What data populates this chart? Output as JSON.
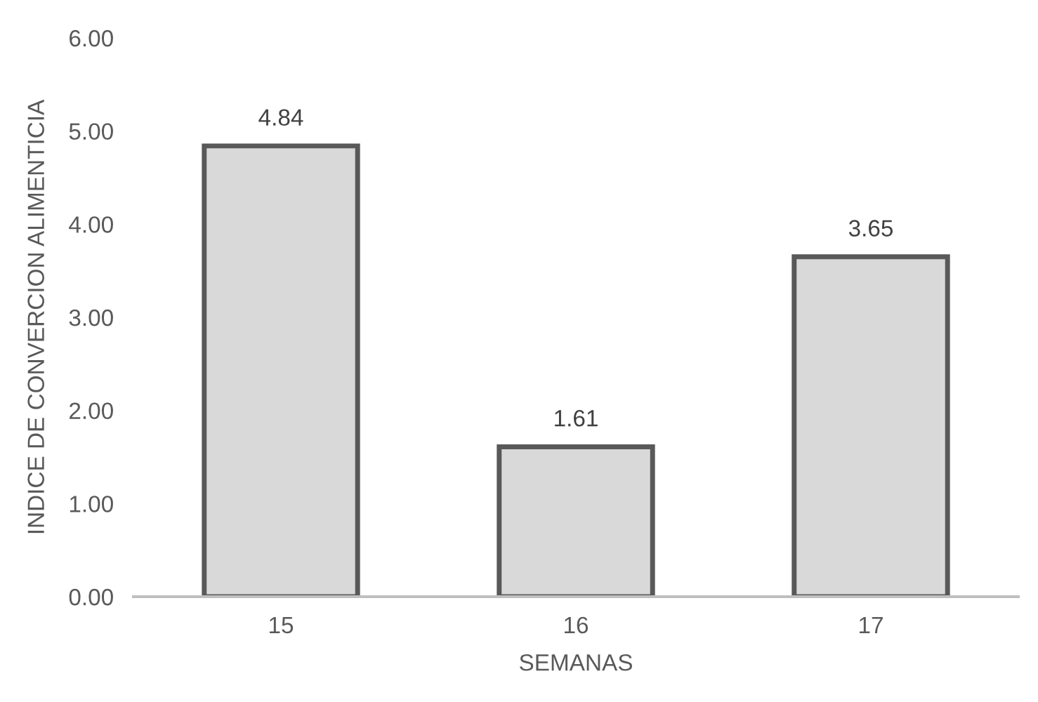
{
  "chart_data": {
    "type": "bar",
    "xlabel": "SEMANAS",
    "ylabel": "INDICE DE CONVERCION ALIMENTICIA",
    "categories": [
      "15",
      "16",
      "17"
    ],
    "values": [
      4.84,
      1.61,
      3.65
    ],
    "color": "#d9d9d9",
    "ylim": [
      0,
      6
    ],
    "yticks": [
      {
        "value": 0,
        "label": "0.00"
      },
      {
        "value": 1,
        "label": "1.00"
      },
      {
        "value": 2,
        "label": "2.00"
      },
      {
        "value": 3,
        "label": "3.00"
      },
      {
        "value": 4,
        "label": "4.00"
      },
      {
        "value": 5,
        "label": "5.00"
      },
      {
        "value": 6,
        "label": "6.00"
      }
    ],
    "data_labels": true
  }
}
